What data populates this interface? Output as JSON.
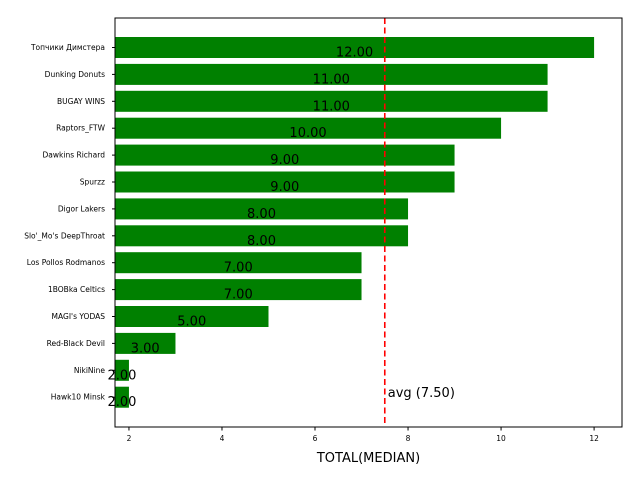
{
  "chart_data": {
    "type": "bar",
    "orientation": "horizontal",
    "categories": [
      "Топчики Димстера",
      "Dunking Donuts",
      "BUGAY WINS",
      "Raptors_FTW",
      "Dawkins Richard",
      "Spurzz",
      "Digor Lakers",
      "Slo'_Mo's DeepThroat",
      "Los Pollos Rodmanos",
      "1BOBka Celtics",
      "MAGI's YODAS",
      "Red-Black Devil",
      "NikiNine",
      "Hawk10 Minsk"
    ],
    "values": [
      12,
      11,
      11,
      10,
      9,
      9,
      8,
      8,
      7,
      7,
      5,
      3,
      2,
      2
    ],
    "data_labels": [
      "12.00",
      "11.00",
      "11.00",
      "10.00",
      "9.00",
      "9.00",
      "8.00",
      "8.00",
      "7.00",
      "7.00",
      "5.00",
      "3.00",
      "2.00",
      "2.00"
    ],
    "title": "",
    "xlabel": "TOTAL(MEDIAN)",
    "ylabel": "",
    "xlim": [
      1.7,
      12.6
    ],
    "xticks": [
      2,
      4,
      6,
      8,
      10,
      12
    ],
    "xtick_labels": [
      "2",
      "4",
      "6",
      "8",
      "10",
      "12"
    ],
    "grid": false,
    "reference_line": {
      "value": 7.5,
      "label": "avg (7.50)",
      "style": "dashed"
    },
    "colors": {
      "bar": "#008000",
      "reference_line": "#ff0000",
      "text": "#000000"
    }
  }
}
